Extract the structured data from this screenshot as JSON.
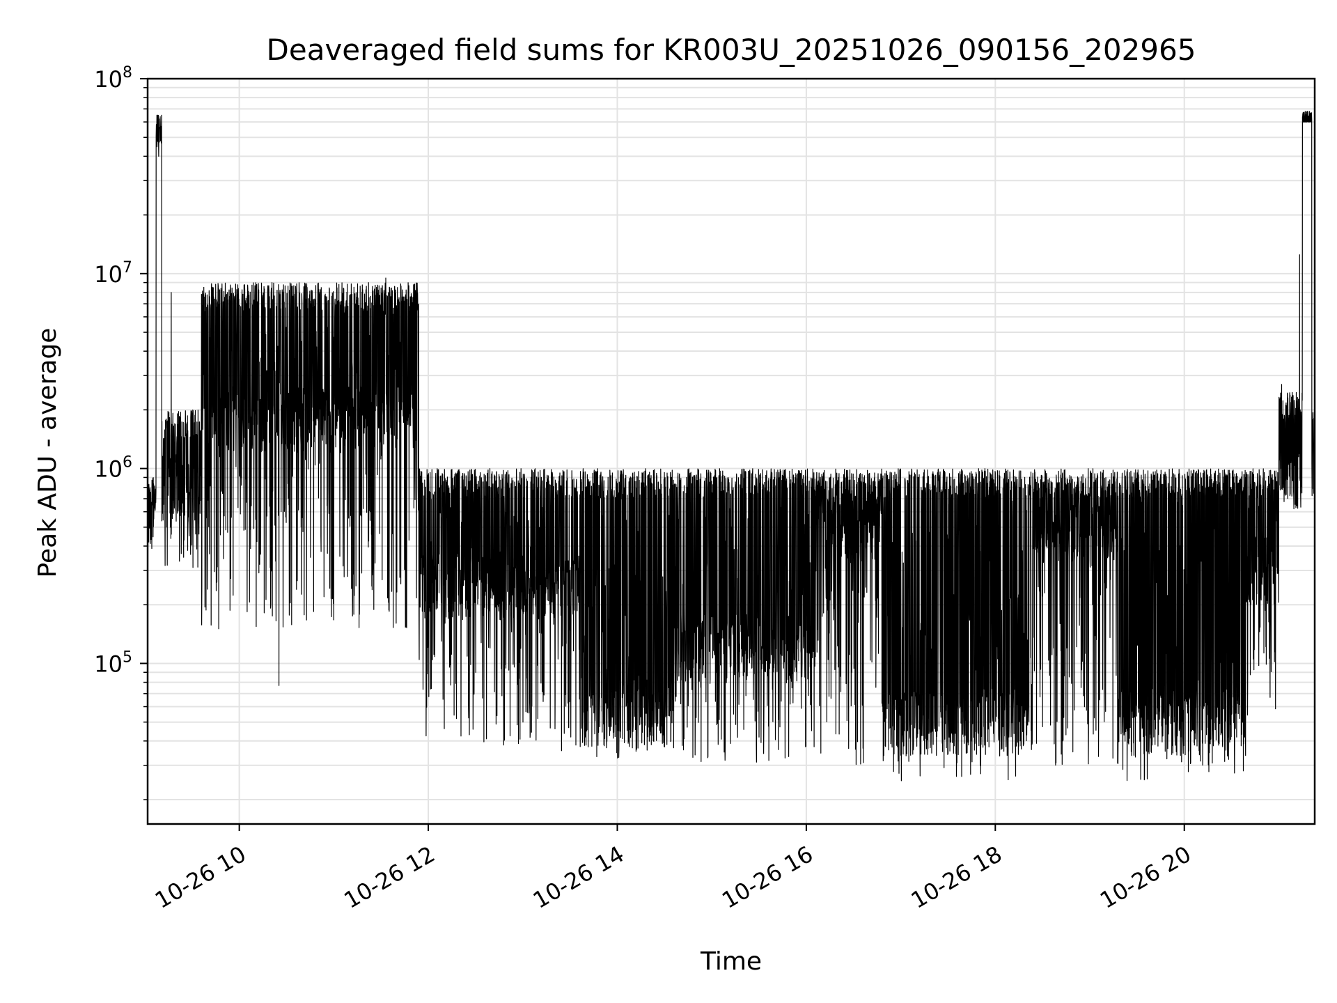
{
  "chart_data": {
    "type": "line",
    "title": "Deaveraged field sums for KR003U_20251026_090156_202965",
    "xlabel": "Time",
    "ylabel": "Peak ADU - average",
    "yscale": "log",
    "xlim_hours": [
      9.03,
      21.38
    ],
    "ylim": [
      15000,
      100000000
    ],
    "grid": "major and minor",
    "line_color": "#000000",
    "x_ticks": [
      {
        "hour": 10,
        "label": "10-26 10"
      },
      {
        "hour": 12,
        "label": "10-26 12"
      },
      {
        "hour": 14,
        "label": "10-26 14"
      },
      {
        "hour": 16,
        "label": "10-26 16"
      },
      {
        "hour": 18,
        "label": "10-26 18"
      },
      {
        "hour": 20,
        "label": "10-26 20"
      }
    ],
    "y_ticks": [
      {
        "value": 100000,
        "base": "10",
        "exp": "5"
      },
      {
        "value": 1000000,
        "base": "10",
        "exp": "6"
      },
      {
        "value": 10000000,
        "base": "10",
        "exp": "7"
      },
      {
        "value": 100000000,
        "base": "10",
        "exp": "8"
      }
    ],
    "series": [
      {
        "name": "Peak ADU - average",
        "segments": [
          {
            "start_hour": 9.03,
            "end_hour": 9.12,
            "low": 350000,
            "high": 900000,
            "mid": 600000
          },
          {
            "start_hour": 9.12,
            "end_hour": 9.18,
            "low": 40000000,
            "high": 65000000,
            "mid": 55000000
          },
          {
            "start_hour": 9.18,
            "end_hour": 9.6,
            "low": 300000,
            "high": 2000000,
            "mid": 800000
          },
          {
            "start_hour": 9.6,
            "end_hour": 11.9,
            "low": 150000,
            "high": 9000000,
            "mid": 1800000
          },
          {
            "start_hour": 11.9,
            "end_hour": 13.6,
            "low": 35000,
            "high": 1000000,
            "mid": 250000
          },
          {
            "start_hour": 13.6,
            "end_hour": 14.6,
            "low": 30000,
            "high": 1000000,
            "mid": 55000
          },
          {
            "start_hour": 14.6,
            "end_hour": 16.1,
            "low": 30000,
            "high": 1000000,
            "mid": 120000
          },
          {
            "start_hour": 16.1,
            "end_hour": 16.8,
            "low": 30000,
            "high": 1000000,
            "mid": 500000
          },
          {
            "start_hour": 16.8,
            "end_hour": 18.4,
            "low": 25000,
            "high": 1000000,
            "mid": 50000
          },
          {
            "start_hour": 18.4,
            "end_hour": 19.3,
            "low": 30000,
            "high": 1000000,
            "mid": 500000
          },
          {
            "start_hour": 19.3,
            "end_hour": 20.65,
            "low": 25000,
            "high": 1000000,
            "mid": 50000
          },
          {
            "start_hour": 20.65,
            "end_hour": 21.0,
            "low": 50000,
            "high": 1000000,
            "mid": 300000
          },
          {
            "start_hour": 21.0,
            "end_hour": 21.25,
            "low": 600000,
            "high": 2500000,
            "mid": 950000
          },
          {
            "start_hour": 21.25,
            "end_hour": 21.35,
            "low": 60000000,
            "high": 68000000,
            "mid": 65000000
          },
          {
            "start_hour": 21.35,
            "end_hour": 21.38,
            "low": 700000,
            "high": 2000000,
            "mid": 1000000
          }
        ],
        "notable_spikes": [
          {
            "hour": 9.28,
            "value": 8000000
          },
          {
            "hour": 10.42,
            "value": 77000
          },
          {
            "hour": 11.55,
            "value": 9500000
          },
          {
            "hour": 11.87,
            "value": 8000000
          },
          {
            "hour": 21.03,
            "value": 2700000
          },
          {
            "hour": 21.22,
            "value": 12500000
          }
        ]
      }
    ]
  }
}
